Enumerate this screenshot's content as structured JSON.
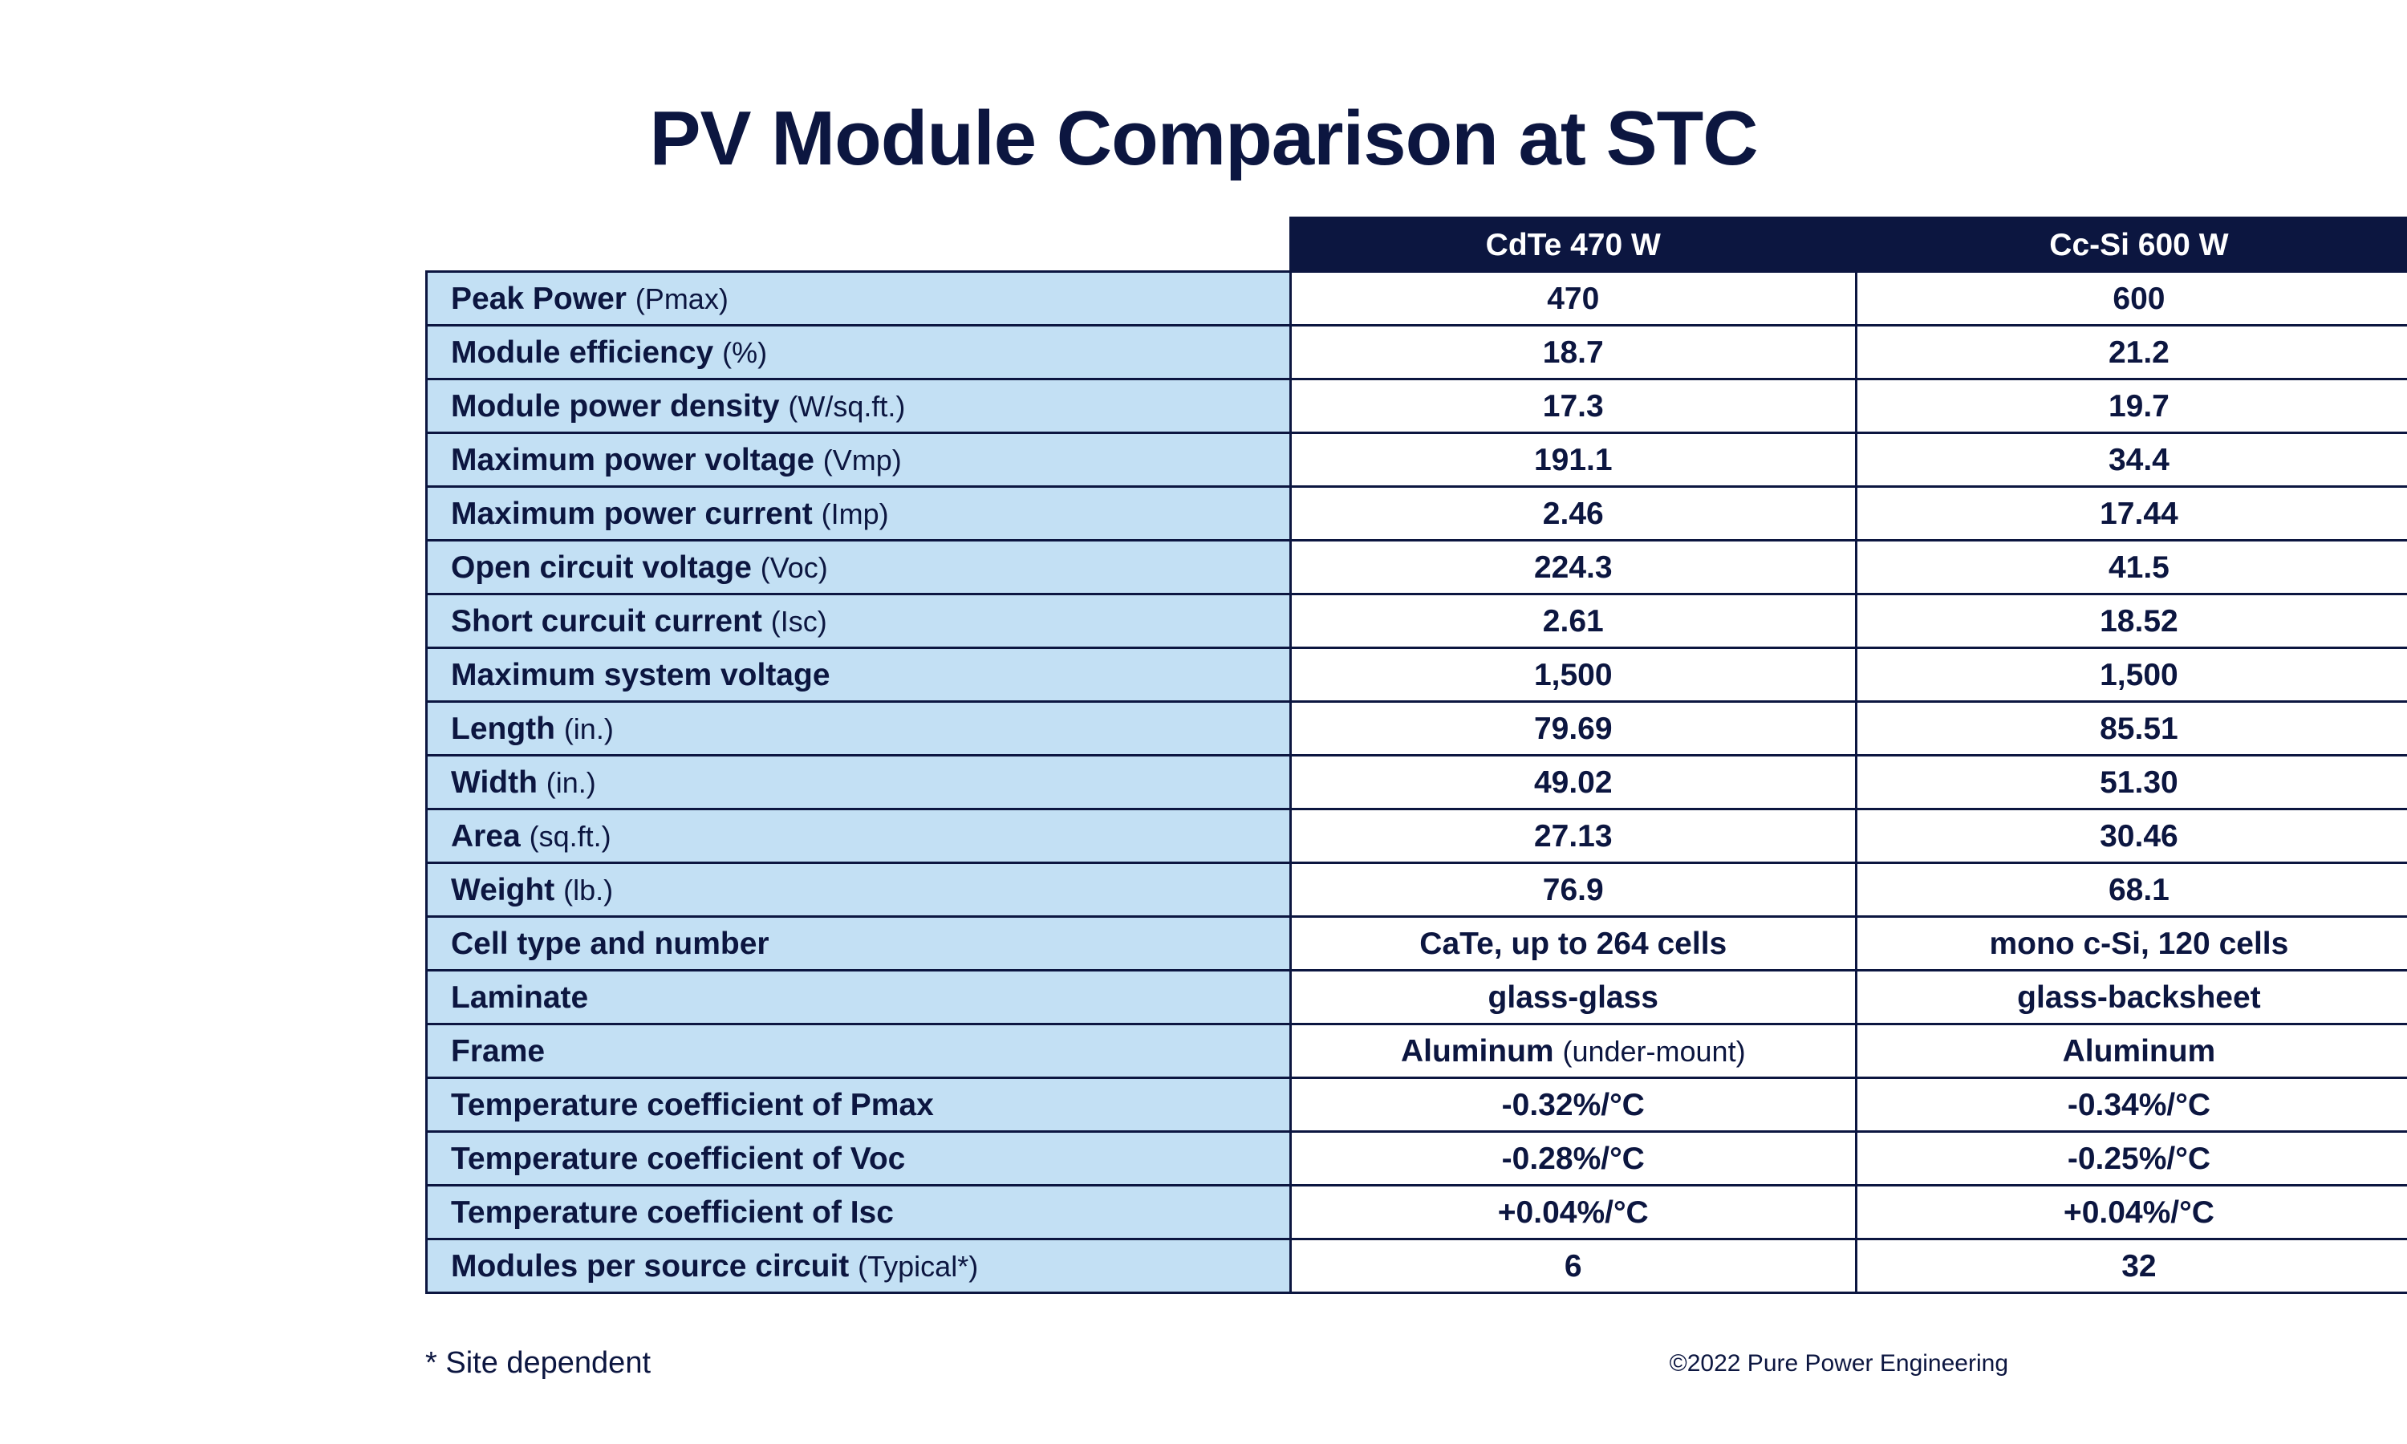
{
  "title": "PV Module Comparison at STC",
  "columns": [
    "CdTe 470 W",
    "Cc-Si 600 W"
  ],
  "rows": [
    {
      "label": "Peak Power",
      "unit": "(Pmax)",
      "a": "470",
      "a_note": "",
      "b": "600"
    },
    {
      "label": "Module efficiency",
      "unit": "(%)",
      "a": "18.7",
      "a_note": "",
      "b": "21.2"
    },
    {
      "label": "Module power density",
      "unit": "(W/sq.ft.)",
      "a": "17.3",
      "a_note": "",
      "b": "19.7"
    },
    {
      "label": "Maximum power voltage",
      "unit": "(Vmp)",
      "a": "191.1",
      "a_note": "",
      "b": "34.4"
    },
    {
      "label": "Maximum power current",
      "unit": "(Imp)",
      "a": "2.46",
      "a_note": "",
      "b": "17.44"
    },
    {
      "label": "Open circuit voltage",
      "unit": "(Voc)",
      "a": "224.3",
      "a_note": "",
      "b": "41.5"
    },
    {
      "label": "Short curcuit current",
      "unit": "(Isc)",
      "a": "2.61",
      "a_note": "",
      "b": "18.52"
    },
    {
      "label": "Maximum system voltage",
      "unit": "",
      "a": "1,500",
      "a_note": "",
      "b": "1,500"
    },
    {
      "label": "Length",
      "unit": "(in.)",
      "a": "79.69",
      "a_note": "",
      "b": "85.51"
    },
    {
      "label": "Width",
      "unit": "(in.)",
      "a": "49.02",
      "a_note": "",
      "b": "51.30"
    },
    {
      "label": "Area",
      "unit": "(sq.ft.)",
      "a": "27.13",
      "a_note": "",
      "b": "30.46"
    },
    {
      "label": "Weight",
      "unit": "(lb.)",
      "a": "76.9",
      "a_note": "",
      "b": "68.1"
    },
    {
      "label": "Cell type and number",
      "unit": "",
      "a": "CaTe, up to 264 cells",
      "a_note": "",
      "b": "mono c-Si, 120 cells"
    },
    {
      "label": "Laminate",
      "unit": "",
      "a": "glass-glass",
      "a_note": "",
      "b": "glass-backsheet"
    },
    {
      "label": "Frame",
      "unit": "",
      "a": "Aluminum",
      "a_note": "(under-mount)",
      "b": "Aluminum"
    },
    {
      "label": "Temperature coefficient of Pmax",
      "unit": "",
      "a": "-0.32%/°C",
      "a_note": "",
      "b": "-0.34%/°C"
    },
    {
      "label": "Temperature coefficient of Voc",
      "unit": "",
      "a": "-0.28%/°C",
      "a_note": "",
      "b": "-0.25%/°C"
    },
    {
      "label": "Temperature coefficient of Isc",
      "unit": "",
      "a": "+0.04%/°C",
      "a_note": "",
      "b": "+0.04%/°C"
    },
    {
      "label": "Modules per source circuit",
      "unit": "(Typical*)",
      "a": "6",
      "a_note": "",
      "b": "32"
    }
  ],
  "footnote": "* Site dependent",
  "copyright": "©2022 Pure Power Engineering",
  "colors": {
    "navy": "#0c1640",
    "label_bg": "#c3e0f4",
    "background": "#ffffff"
  }
}
